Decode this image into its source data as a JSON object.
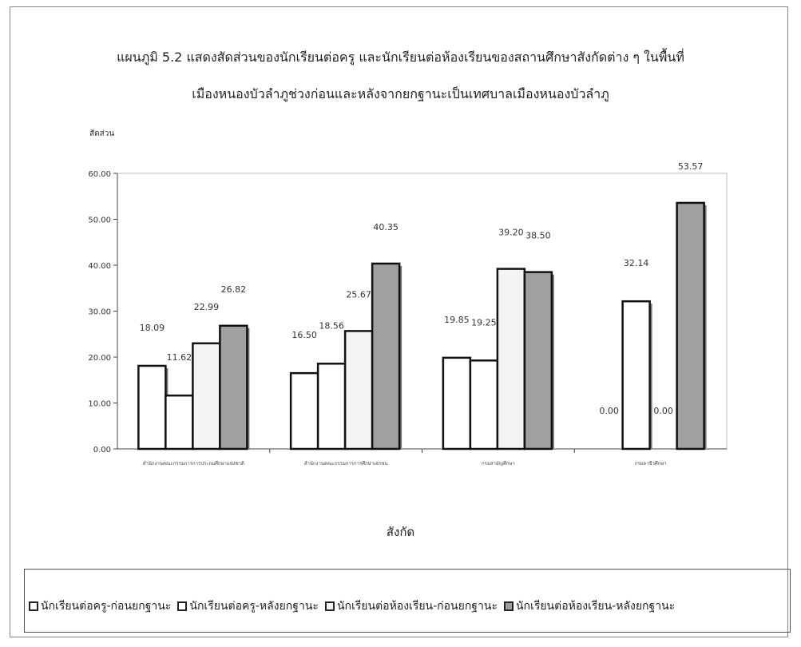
{
  "chart_data": {
    "type": "bar",
    "title_line1": "แผนภูมิ 5.2 แสดงสัดส่วนของนักเรียนต่อครู และนักเรียนต่อห้องเรียนของสถานศึกษาสังกัดต่าง ๆ ในพื้นที่",
    "title_line2": "เมืองหนองบัวลำภูช่วงก่อนและหลังจากยกฐานะเป็นเทศบาลเมืองหนองบัวลำภู",
    "ylabel": "สัดส่วน",
    "xlabel": "สังกัด",
    "ylim": [
      0,
      60
    ],
    "yticks": [
      "0.00",
      "10.00",
      "20.00",
      "30.00",
      "40.00",
      "50.00",
      "60.00"
    ],
    "categories": [
      "สำนักงานคณะกรรมการการประถมศึกษาแห่งชาติ",
      "สำนักงานคณะกรรมการการศึกษาเอกชน",
      "กรมสามัญศึกษา",
      "กรมอาชีวศึกษา"
    ],
    "series": [
      {
        "name": "นักเรียนต่อครู-ก่อนยกฐานะ",
        "values": [
          18.09,
          16.5,
          19.85,
          0.0
        ],
        "labels": [
          "18.09",
          "16.50",
          "19.85",
          "0.00"
        ],
        "fill": "#ffffff"
      },
      {
        "name": "นักเรียนต่อครู-หลังยกฐานะ",
        "values": [
          11.62,
          18.56,
          19.25,
          32.14
        ],
        "labels": [
          "11.62",
          "18.56",
          "19.25",
          "32.14"
        ],
        "fill": "#ffffff"
      },
      {
        "name": "นักเรียนต่อห้องเรียน-ก่อนยกฐานะ",
        "values": [
          22.99,
          25.67,
          39.2,
          0.0
        ],
        "labels": [
          "22.99",
          "25.67",
          "39.20",
          "0.00"
        ],
        "fill": "#f4f4f4"
      },
      {
        "name": "นักเรียนต่อห้องเรียน-หลังยกฐานะ",
        "values": [
          26.82,
          40.35,
          38.5,
          53.57
        ],
        "labels": [
          "26.82",
          "40.35",
          "38.50",
          "53.57"
        ],
        "fill": "#a0a0a0"
      }
    ],
    "grid": false,
    "legend_position": "bottom"
  }
}
